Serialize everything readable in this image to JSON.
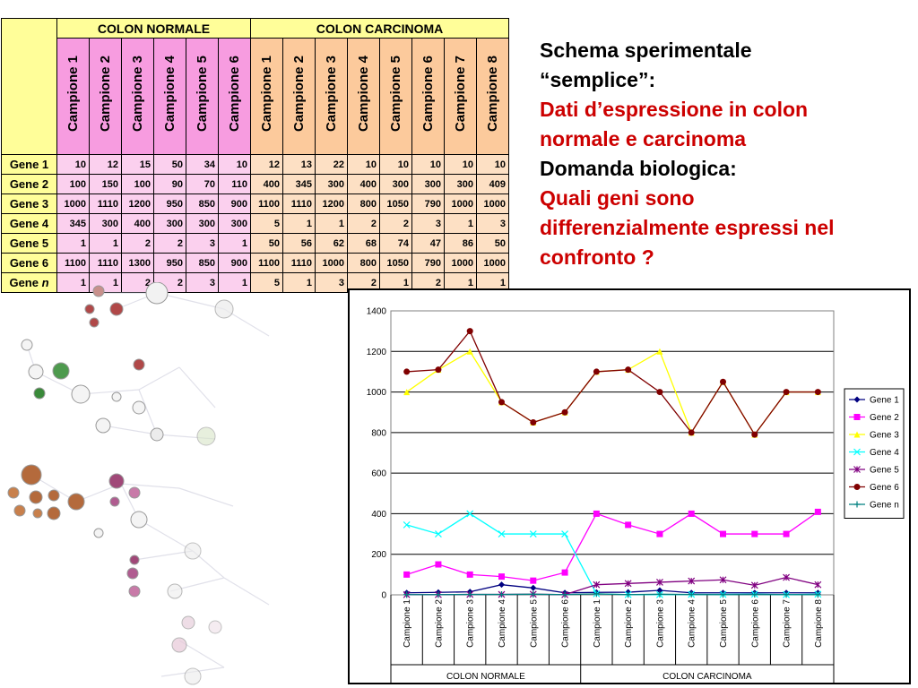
{
  "table": {
    "group_headers": [
      "COLON NORMALE",
      "COLON CARCINOMA"
    ],
    "normal_samples": [
      "Campione 1",
      "Campione 2",
      "Campione 3",
      "Campione 4",
      "Campione 5",
      "Campione 6"
    ],
    "carcinoma_samples": [
      "Campione 1",
      "Campione 2",
      "Campione 3",
      "Campione 4",
      "Campione 5",
      "Campione 6",
      "Campione 7",
      "Campione 8"
    ],
    "rows": [
      {
        "gene": "Gene 1",
        "normal": [
          10,
          12,
          15,
          50,
          34,
          10
        ],
        "carcinoma": [
          12,
          13,
          22,
          10,
          10,
          10,
          10,
          10
        ]
      },
      {
        "gene": "Gene 2",
        "normal": [
          100,
          150,
          100,
          90,
          70,
          110
        ],
        "carcinoma": [
          400,
          345,
          300,
          400,
          300,
          300,
          300,
          409
        ]
      },
      {
        "gene": "Gene 3",
        "normal": [
          1000,
          1110,
          1200,
          950,
          850,
          900
        ],
        "carcinoma": [
          1100,
          1110,
          1200,
          800,
          1050,
          790,
          1000,
          1000
        ]
      },
      {
        "gene": "Gene 4",
        "normal": [
          345,
          300,
          400,
          300,
          300,
          300
        ],
        "carcinoma": [
          5,
          1,
          1,
          2,
          2,
          3,
          1,
          3
        ]
      },
      {
        "gene": "Gene 5",
        "normal": [
          1,
          1,
          2,
          2,
          3,
          1
        ],
        "carcinoma": [
          50,
          56,
          62,
          68,
          74,
          47,
          86,
          50
        ]
      },
      {
        "gene": "Gene 6",
        "normal": [
          1100,
          1110,
          1300,
          950,
          850,
          900
        ],
        "carcinoma": [
          1100,
          1110,
          1000,
          800,
          1050,
          790,
          1000,
          1000
        ]
      },
      {
        "gene": "Gene n",
        "gene_prefix": "Gene ",
        "gene_italic": "n",
        "normal": [
          1,
          1,
          2,
          2,
          3,
          1
        ],
        "carcinoma": [
          5,
          1,
          3,
          2,
          1,
          2,
          1,
          1
        ]
      }
    ]
  },
  "text": {
    "line1": "Schema sperimentale",
    "line2": "“semplice”:",
    "line3": "Dati d’espressione in colon",
    "line4": "normale e carcinoma",
    "line5": "Domanda biologica:",
    "line6": "Quali geni sono",
    "line7": "differenzialmente espressi nel",
    "line8": "confronto ?"
  },
  "colors": {
    "text_red": "#cc0000",
    "header_yellow": "#fffe99",
    "normal_pink": "#f79ce0",
    "carcinoma_orange": "#fcca9c"
  },
  "chart_data": {
    "type": "line",
    "categories": [
      "Campione 1",
      "Campione 2",
      "Campione 3",
      "Campione 4",
      "Campione 5",
      "Campione 6",
      "Campione 1",
      "Campione 2",
      "Campione 3",
      "Campione 4",
      "Campione 5",
      "Campione 6",
      "Campione 7",
      "Campione 8"
    ],
    "category_groups": [
      {
        "label": "COLON NORMALE",
        "count": 6
      },
      {
        "label": "COLON CARCINOMA",
        "count": 8
      }
    ],
    "ylim": [
      0,
      1400
    ],
    "yticks": [
      0,
      200,
      400,
      600,
      800,
      1000,
      1200,
      1400
    ],
    "grid": true,
    "legend": "right",
    "series": [
      {
        "name": "Gene 1",
        "color": "#000080",
        "marker": "diamond",
        "values": [
          10,
          12,
          15,
          50,
          34,
          10,
          12,
          13,
          22,
          10,
          10,
          10,
          10,
          10
        ]
      },
      {
        "name": "Gene 2",
        "color": "#ff00ff",
        "marker": "square",
        "values": [
          100,
          150,
          100,
          90,
          70,
          110,
          400,
          345,
          300,
          400,
          300,
          300,
          300,
          409
        ]
      },
      {
        "name": "Gene 3",
        "color": "#ffff00",
        "marker": "triangle",
        "values": [
          1000,
          1110,
          1200,
          950,
          850,
          900,
          1100,
          1110,
          1200,
          800,
          1050,
          790,
          1000,
          1000
        ]
      },
      {
        "name": "Gene 4",
        "color": "#00ffff",
        "marker": "x",
        "values": [
          345,
          300,
          400,
          300,
          300,
          300,
          5,
          1,
          1,
          2,
          2,
          3,
          1,
          3
        ]
      },
      {
        "name": "Gene 5",
        "color": "#800080",
        "marker": "star",
        "values": [
          1,
          1,
          2,
          2,
          3,
          1,
          50,
          56,
          62,
          68,
          74,
          47,
          86,
          50
        ]
      },
      {
        "name": "Gene 6",
        "color": "#800000",
        "marker": "circle",
        "values": [
          1100,
          1110,
          1300,
          950,
          850,
          900,
          1100,
          1110,
          1000,
          800,
          1050,
          790,
          1000,
          1000
        ]
      },
      {
        "name": "Gene n",
        "color": "#008080",
        "marker": "plus",
        "values": [
          1,
          1,
          2,
          2,
          3,
          1,
          5,
          1,
          3,
          2,
          1,
          2,
          1,
          1
        ]
      }
    ]
  }
}
